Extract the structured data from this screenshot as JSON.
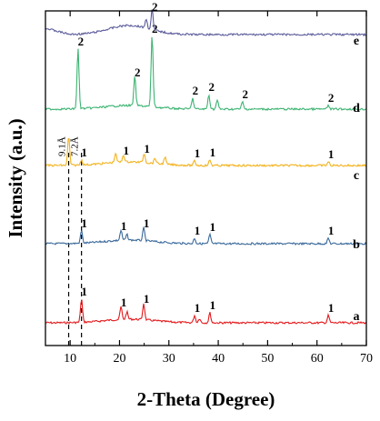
{
  "chart_data": {
    "type": "line",
    "xlabel": "2-Theta (Degree)",
    "ylabel": "Intensity (a.u.)",
    "xlim": [
      5,
      70
    ],
    "x_ticks": [
      "10",
      "20",
      "30",
      "40",
      "50",
      "60",
      "70"
    ],
    "grid": false,
    "legend": "none",
    "annotations": [
      "9.1Å",
      "7.2Å"
    ],
    "reference_lines": [
      9.7,
      12.3
    ],
    "series": [
      {
        "label": "a",
        "color": "#e31a1c",
        "offset": 0,
        "peaks": [
          {
            "x": 12.3,
            "h": 26,
            "label": "1"
          },
          {
            "x": 20.3,
            "h": 14,
            "label": "1"
          },
          {
            "x": 21.5,
            "h": 8,
            "label": ""
          },
          {
            "x": 24.9,
            "h": 18,
            "label": "1"
          },
          {
            "x": 35.2,
            "h": 8,
            "label": "1"
          },
          {
            "x": 36.2,
            "h": 5,
            "label": ""
          },
          {
            "x": 38.3,
            "h": 11,
            "label": "1"
          },
          {
            "x": 62.3,
            "h": 8,
            "label": "1"
          }
        ]
      },
      {
        "label": "b",
        "color": "#3b6a9b",
        "offset": 1,
        "peaks": [
          {
            "x": 12.3,
            "h": 14,
            "label": "1"
          },
          {
            "x": 20.3,
            "h": 11,
            "label": "1"
          },
          {
            "x": 21.5,
            "h": 6,
            "label": ""
          },
          {
            "x": 24.9,
            "h": 14,
            "label": "1"
          },
          {
            "x": 35.2,
            "h": 6,
            "label": "1"
          },
          {
            "x": 38.3,
            "h": 10,
            "label": "1"
          },
          {
            "x": 62.3,
            "h": 6,
            "label": "1"
          }
        ]
      },
      {
        "label": "c",
        "color": "#f2b21c",
        "offset": 2,
        "peaks": [
          {
            "x": 9.7,
            "h": 32,
            "label": ""
          },
          {
            "x": 12.3,
            "h": 6,
            "label": "1"
          },
          {
            "x": 19.2,
            "h": 10,
            "label": ""
          },
          {
            "x": 20.8,
            "h": 8,
            "label": "1"
          },
          {
            "x": 25.0,
            "h": 10,
            "label": "1"
          },
          {
            "x": 27.2,
            "h": 6,
            "label": ""
          },
          {
            "x": 29.2,
            "h": 8,
            "label": ""
          },
          {
            "x": 35.2,
            "h": 5,
            "label": "1"
          },
          {
            "x": 38.3,
            "h": 6,
            "label": "1"
          },
          {
            "x": 62.3,
            "h": 4,
            "label": "1"
          }
        ]
      },
      {
        "label": "d",
        "color": "#3cb371",
        "offset": 3,
        "peaks": [
          {
            "x": 11.6,
            "h": 66,
            "label": "2"
          },
          {
            "x": 23.1,
            "h": 32,
            "label": "2"
          },
          {
            "x": 26.6,
            "h": 80,
            "label": "2"
          },
          {
            "x": 34.8,
            "h": 12,
            "label": "2"
          },
          {
            "x": 38.1,
            "h": 16,
            "label": "2"
          },
          {
            "x": 39.8,
            "h": 10,
            "label": ""
          },
          {
            "x": 44.9,
            "h": 8,
            "label": "2"
          },
          {
            "x": 62.3,
            "h": 4,
            "label": "2"
          }
        ]
      },
      {
        "label": "e",
        "color": "#5a5a9a",
        "offset": 4,
        "peaks": [
          {
            "x": 25.4,
            "h": 10,
            "label": ""
          },
          {
            "x": 26.6,
            "h": 22,
            "label": "2"
          }
        ]
      }
    ]
  }
}
